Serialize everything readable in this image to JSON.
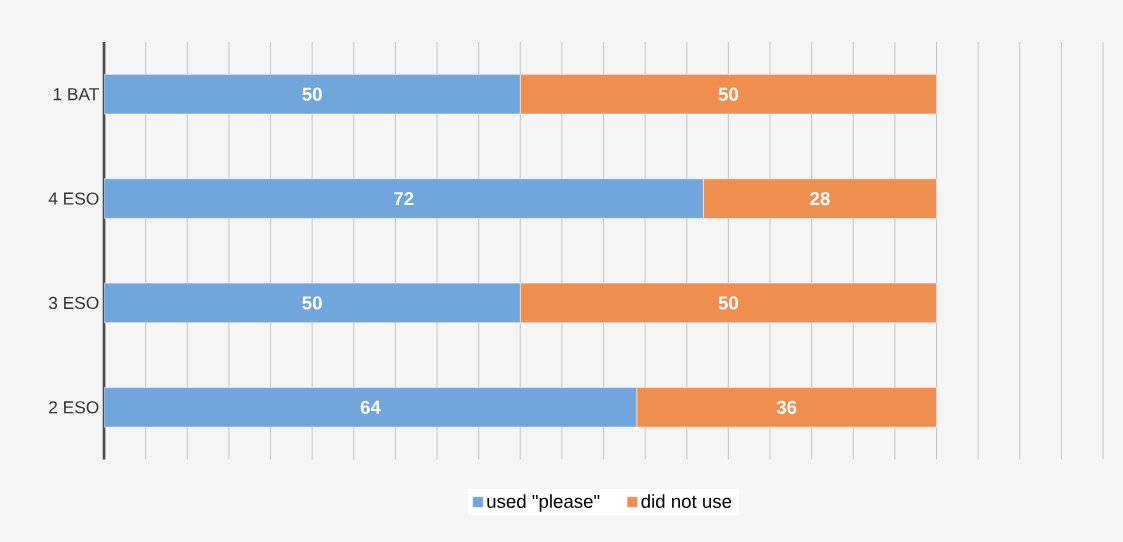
{
  "chart_data": {
    "type": "bar",
    "orientation": "horizontal",
    "stacked": true,
    "categories": [
      "1 BAT",
      "4 ESO",
      "3 ESO",
      "2 ESO"
    ],
    "series": [
      {
        "name": "used \"please\"",
        "color": "#70a6dc",
        "values": [
          50,
          72,
          50,
          64
        ]
      },
      {
        "name": "did not use",
        "color": "#ef8e4e",
        "values": [
          50,
          28,
          50,
          36
        ]
      }
    ],
    "grid": "x",
    "legend": "bottom",
    "tick_labels": "y",
    "data_labels": true
  }
}
